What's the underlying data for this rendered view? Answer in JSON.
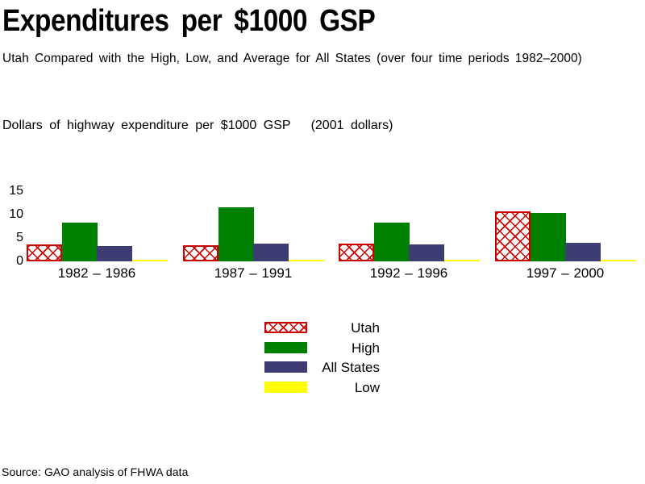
{
  "title": "Expenditures per $1000 GSP",
  "subtitle": "Utah Compared with the High, Low, and Average for All States (over four time periods 1982–2000)",
  "axis_note": "Dollars of highway expenditure per $1000 GSP   (2001 dollars)",
  "source": "Source: GAO analysis of FHWA data",
  "colors": {
    "utah_red": "#cc0000",
    "high_green": "#008000",
    "all_states_navy": "#3d3c73",
    "low_yellow": "#ffff00"
  },
  "legend": [
    {
      "series": "utah",
      "label": "Utah",
      "style": "crosshatch",
      "color": "#cc0000"
    },
    {
      "series": "high",
      "label": "High",
      "style": "solid",
      "color": "#008000"
    },
    {
      "series": "all-states",
      "label": "All States",
      "style": "solid",
      "color": "#3d3c73"
    },
    {
      "series": "low",
      "label": "Low",
      "style": "solid",
      "color": "#ffff00"
    }
  ],
  "chart_data": {
    "type": "bar",
    "title": "Expenditures per $1000 GSP",
    "subtitle": "Utah Compared with the High, Low, and Average for All States (over four time periods 1982–2000)",
    "ylabel": "Dollars of highway expenditure per $1000 GSP (2001 dollars)",
    "xlabel": "",
    "categories": [
      "1982 – 1986",
      "1987 – 1991",
      "1992 – 1996",
      "1997 – 2000"
    ],
    "series": [
      {
        "name": "Utah",
        "style": "crosshatch",
        "color": "#cc0000",
        "values": [
          3.7,
          3.4,
          3.8,
          10.7
        ]
      },
      {
        "name": "High",
        "style": "solid",
        "color": "#008000",
        "values": [
          8.3,
          11.6,
          8.2,
          10.4
        ]
      },
      {
        "name": "All States",
        "style": "solid",
        "color": "#3d3c73",
        "values": [
          3.2,
          3.8,
          3.7,
          4.0
        ]
      },
      {
        "name": "Low",
        "style": "solid",
        "color": "#ffff00",
        "values": [
          0.3,
          0.4,
          0.4,
          0.3
        ]
      }
    ],
    "yticks": [
      0,
      5,
      10,
      15
    ],
    "ylim": [
      0,
      15
    ],
    "grid": false,
    "legend_position": "bottom-center",
    "source": "Source: GAO analysis of FHWA data"
  }
}
